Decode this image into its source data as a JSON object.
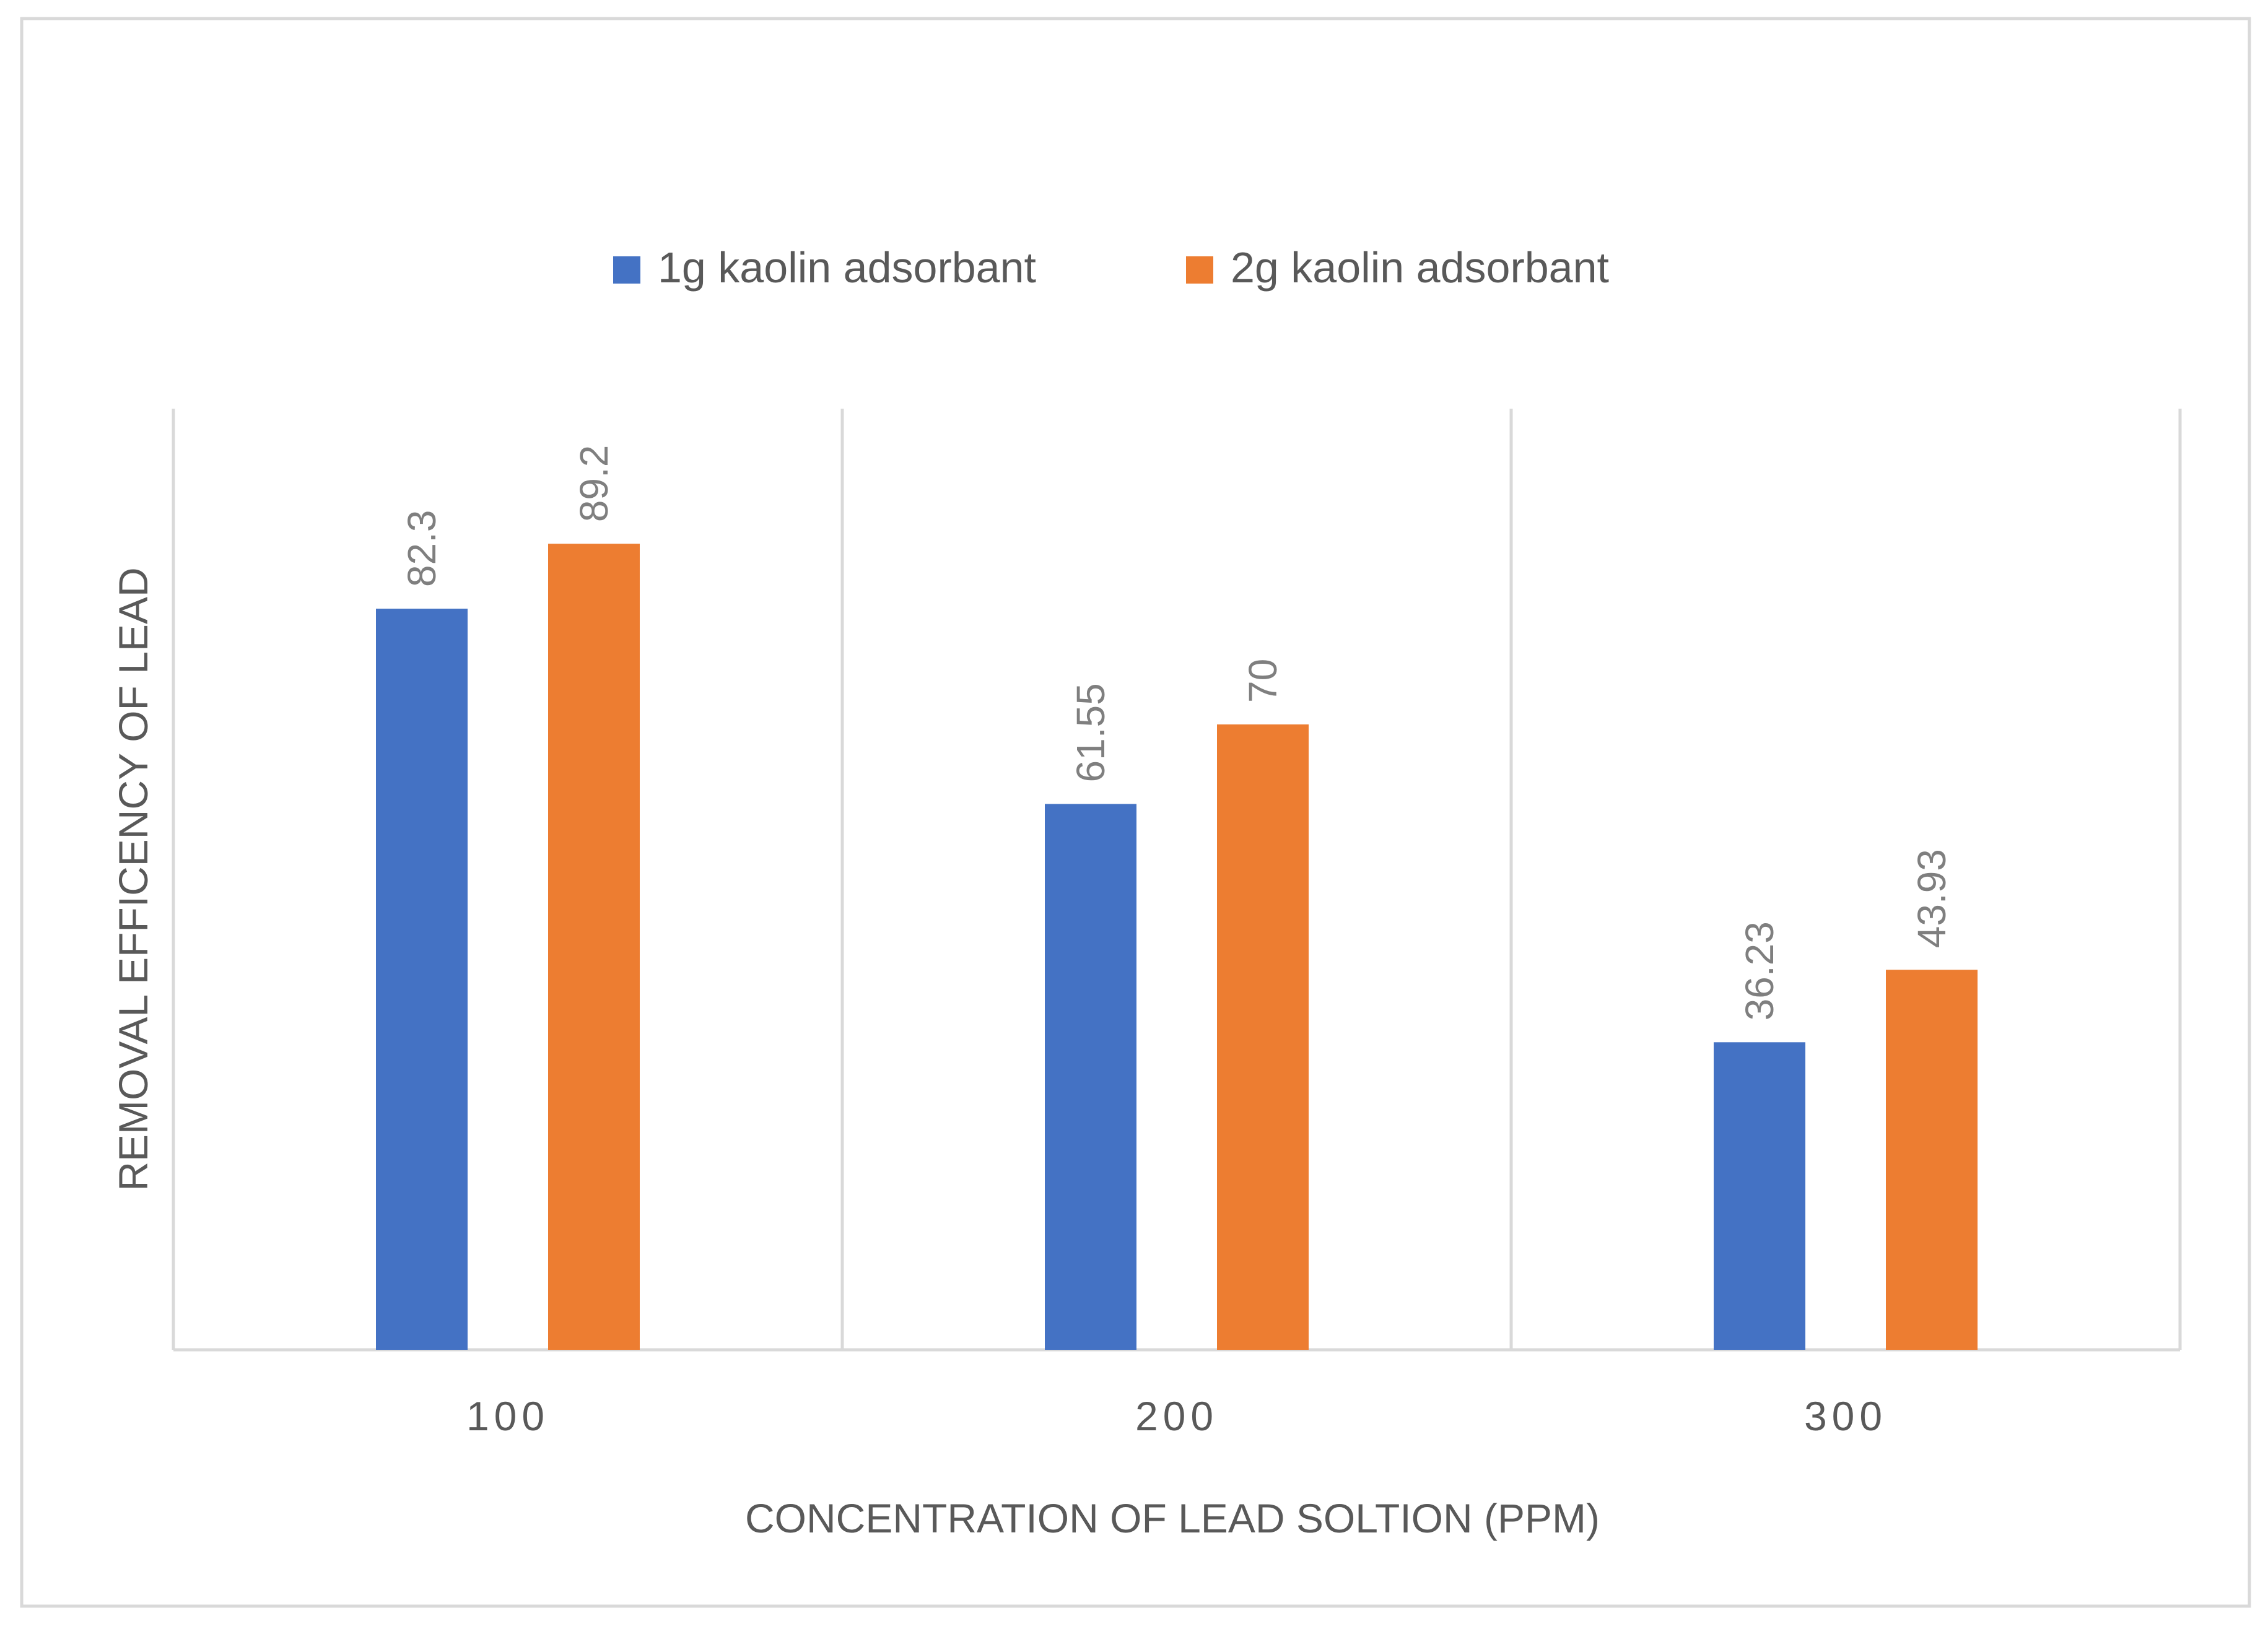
{
  "chart_data": {
    "type": "bar",
    "title": "",
    "xlabel": "CONCENTRATION OF LEAD SOLTION (PPM)",
    "ylabel": "REMOVAL EFFICENCY OF LEAD",
    "categories": [
      "100",
      "200",
      "300"
    ],
    "series": [
      {
        "name": "1g kaolin adsorbant",
        "values": [
          82.3,
          61.55,
          36.23
        ],
        "labels": [
          "82.3",
          "61.55",
          "36.23"
        ],
        "color": "#4472C4"
      },
      {
        "name": "2g kaolin adsorbant",
        "values": [
          89.2,
          70,
          43.93
        ],
        "labels": [
          "89.2",
          "70",
          "43.93"
        ],
        "color": "#ED7D31"
      }
    ],
    "ylim": [
      0,
      100
    ],
    "grid": "vertical category separators",
    "legend": "top-center",
    "data_labels": "rotated, above bars"
  }
}
